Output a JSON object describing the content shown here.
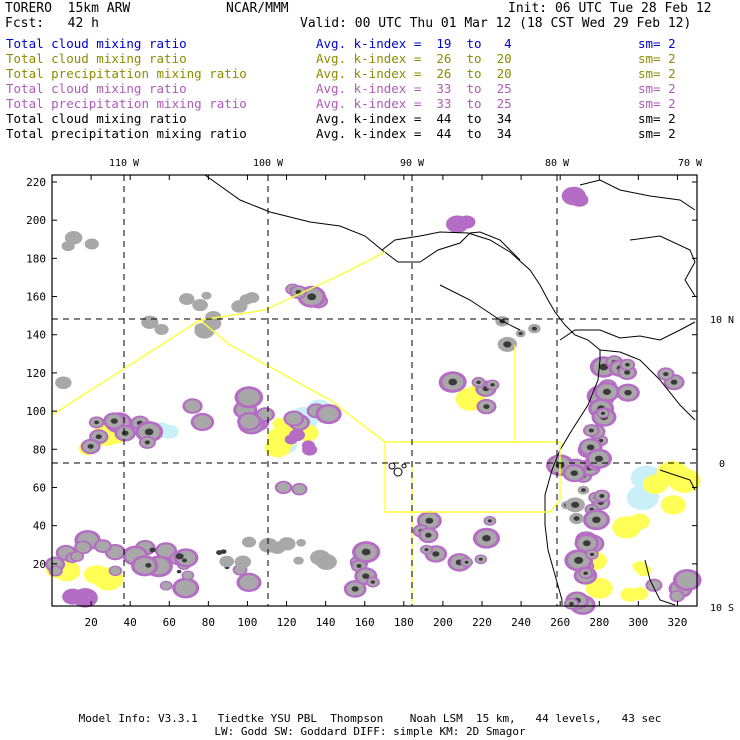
{
  "header": {
    "model": "TORERO  15km ARW",
    "org": "NCAR/MMM",
    "init": "Init: 06 UTC Tue 28 Feb 12",
    "fcst": "Fcst:   42 h",
    "valid": "Valid: 00 UTC Thu 01 Mar 12 (18 CST Wed 29 Feb 12)"
  },
  "legend": [
    {
      "field": "Total cloud mixing ratio",
      "index": "Avg. k-index =  19  to   4",
      "sm": "sm= 2",
      "color": "#0000cc"
    },
    {
      "field": "Total cloud mixing ratio",
      "index": "Avg. k-index =  26  to  20",
      "sm": "sm= 2",
      "color": "#8c8c00"
    },
    {
      "field": "Total precipitation mixing ratio",
      "index": "Avg. k-index =  26  to  20",
      "sm": "sm= 2",
      "color": "#8c8c00"
    },
    {
      "field": "Total cloud mixing ratio",
      "index": "Avg. k-index =  33  to  25",
      "sm": "sm= 2",
      "color": "#b05ab8"
    },
    {
      "field": "Total precipitation mixing ratio",
      "index": "Avg. k-index =  33  to  25",
      "sm": "sm= 2",
      "color": "#b05ab8"
    },
    {
      "field": "Total cloud mixing ratio",
      "index": "Avg. k-index =  44  to  34",
      "sm": "sm= 2",
      "color": "#000000"
    },
    {
      "field": "Total precipitation mixing ratio",
      "index": "Avg. k-index =  44  to  34",
      "sm": "sm= 2",
      "color": "#000000"
    }
  ],
  "map": {
    "lon_labels": [
      "110 W",
      "100 W",
      "90 W",
      "80 W",
      "70 W"
    ],
    "lat_labels": [
      "10 N",
      "0",
      "10 S"
    ],
    "y_ticks": [
      "220",
      "200",
      "180",
      "160",
      "140",
      "120",
      "100",
      "80",
      "60",
      "40",
      "20"
    ],
    "x_ticks": [
      "20",
      "40",
      "60",
      "80",
      "100",
      "120",
      "140",
      "160",
      "180",
      "200",
      "220",
      "240",
      "260",
      "280",
      "300",
      "320"
    ],
    "colors": {
      "frame": "#000000",
      "grid": "#000000",
      "domain_box": "#ffff33",
      "cloud_light": "#c9f0f8",
      "cloud_yellow": "#ffff55",
      "cloud_purple": "#b46cc4",
      "cloud_grey": "#a8a8a8",
      "cloud_dark": "#3a3a3a"
    }
  },
  "footer": {
    "line1": "Model Info: V3.3.1   Tiedtke YSU PBL  Thompson    Noah LSM  15 km,   44 levels,   43 sec",
    "line2": "LW: Godd SW: Goddard DIFF: simple KM: 2D Smagor"
  }
}
